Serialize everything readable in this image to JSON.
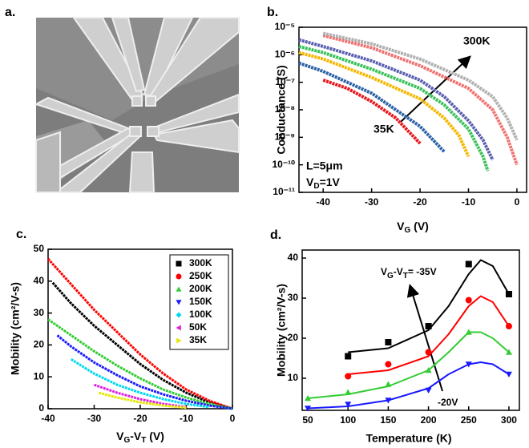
{
  "image_panel": {
    "label": "a."
  },
  "chart_data": [
    {
      "type": "line",
      "panel_label": "b.",
      "yscale": "log",
      "xlabel": [
        "V",
        "G",
        " (V)"
      ],
      "ylabel": "Conductance (S)",
      "annotations": [
        "300K",
        "35K",
        "L=5μm",
        "V",
        "D",
        "=1V"
      ],
      "xlim": [
        -45,
        2
      ],
      "xticks": [
        -40,
        -30,
        -20,
        -10,
        0
      ],
      "ylim": [
        1e-11,
        1e-05
      ],
      "yticks": [
        {
          "value": 1e-11,
          "label": "10⁻¹¹"
        },
        {
          "value": 1e-10,
          "label": "10⁻¹⁰"
        },
        {
          "value": 1e-09,
          "label": "10⁻⁹"
        },
        {
          "value": 1e-08,
          "label": "10⁻⁸"
        },
        {
          "value": 1e-07,
          "label": "10⁻⁷"
        },
        {
          "value": 1e-06,
          "label": "10⁻⁶"
        },
        {
          "value": 1e-05,
          "label": "10⁻⁵"
        }
      ],
      "series": [
        {
          "color": "#e8141b",
          "x": [
            -40,
            -35,
            -30,
            -25,
            -20
          ],
          "values": [
            1.2e-07,
            6e-08,
            2e-08,
            5e-09,
            6e-10
          ]
        },
        {
          "color": "#2b63a8",
          "x": [
            -45,
            -40,
            -35,
            -30,
            -25,
            -20,
            -15
          ],
          "values": [
            5e-07,
            2.5e-07,
            1e-07,
            4e-08,
            1e-08,
            2.5e-09,
            3e-10
          ]
        },
        {
          "color": "#f4b800",
          "x": [
            -45,
            -40,
            -30,
            -20,
            -15,
            -12,
            -10
          ],
          "values": [
            1.2e-06,
            7e-07,
            1.5e-07,
            2.5e-08,
            5e-09,
            1.2e-09,
            2e-10
          ]
        },
        {
          "color": "#39c25a",
          "x": [
            -45,
            -40,
            -30,
            -20,
            -15,
            -10,
            -7,
            -6
          ],
          "values": [
            2e-06,
            1.2e-06,
            3e-07,
            6e-08,
            1.5e-08,
            2e-09,
            2e-10,
            6e-11
          ]
        },
        {
          "color": "#5a5fb0",
          "x": [
            -45,
            -40,
            -30,
            -20,
            -15,
            -10,
            -7,
            -5
          ],
          "values": [
            3.5e-06,
            2e-06,
            6e-07,
            1.2e-07,
            3e-08,
            4e-09,
            8e-10,
            1.5e-10
          ]
        },
        {
          "color": "#f07070",
          "x": [
            -40,
            -30,
            -20,
            -10,
            -5,
            -2,
            0
          ],
          "values": [
            5e-06,
            1.8e-06,
            4e-07,
            6e-08,
            1e-08,
            1e-09,
            1e-10
          ]
        },
        {
          "color": "#b0b0b0",
          "x": [
            -40,
            -30,
            -20,
            -10,
            -5,
            -2,
            0
          ],
          "values": [
            6e-06,
            2.5e-06,
            7e-07,
            1.2e-07,
            3e-08,
            5e-09,
            8e-10
          ]
        }
      ]
    },
    {
      "type": "line",
      "panel_label": "c.",
      "xlabel": [
        "V",
        "G",
        "-V",
        "T",
        " (V)"
      ],
      "ylabel": "Mobility (cm²/V-s)",
      "xlim": [
        -40,
        0
      ],
      "xticks": [
        -40,
        -30,
        -20,
        -10,
        0
      ],
      "ylim": [
        0,
        50
      ],
      "yticks": [
        0,
        10,
        20,
        30,
        40,
        50
      ],
      "legend": "upper right",
      "series": [
        {
          "name": "300K",
          "color": "#000000",
          "marker": "square",
          "x": [
            -39,
            -35,
            -30,
            -25,
            -20,
            -15,
            -10,
            -5,
            0
          ],
          "values": [
            39.5,
            33,
            26,
            20,
            14,
            9,
            5,
            2,
            0
          ]
        },
        {
          "name": "250K",
          "color": "#ff0000",
          "marker": "circle",
          "x": [
            -40,
            -35,
            -30,
            -25,
            -20,
            -15,
            -10,
            -5,
            0
          ],
          "values": [
            47,
            39,
            31,
            24,
            17,
            11,
            6,
            2.5,
            0
          ]
        },
        {
          "name": "200K",
          "color": "#33cc33",
          "marker": "up",
          "x": [
            -40,
            -35,
            -30,
            -25,
            -20,
            -15,
            -10,
            -5,
            0
          ],
          "values": [
            28,
            23,
            18,
            13.5,
            9.5,
            6,
            3.5,
            1.5,
            0
          ]
        },
        {
          "name": "150K",
          "color": "#1a1aff",
          "marker": "down",
          "x": [
            -38,
            -35,
            -30,
            -25,
            -20,
            -15,
            -10,
            -5,
            0
          ],
          "values": [
            23,
            19.5,
            14.5,
            10.5,
            7,
            4.5,
            2.5,
            1,
            0
          ]
        },
        {
          "name": "100K",
          "color": "#00d8f0",
          "marker": "diamond",
          "x": [
            -35,
            -30,
            -25,
            -20,
            -15,
            -10,
            -5
          ],
          "values": [
            15.5,
            11,
            7.5,
            5,
            3,
            1.5,
            0.5
          ]
        },
        {
          "name": "50K",
          "color": "#e020e0",
          "marker": "left",
          "x": [
            -30,
            -25,
            -20,
            -15,
            -10
          ],
          "values": [
            7.5,
            5,
            3,
            1.5,
            0.5
          ]
        },
        {
          "name": "35K",
          "color": "#e6e600",
          "marker": "right",
          "x": [
            -29,
            -25,
            -20,
            -15,
            -10
          ],
          "values": [
            5,
            3.5,
            2,
            1,
            0.3
          ]
        }
      ]
    },
    {
      "type": "scatter",
      "panel_label": "d.",
      "xlabel": "Temperature (K)",
      "ylabel": "Mobility (cm²/V-s)",
      "annotations": [
        "V",
        "G",
        "-V",
        "T",
        "= -35V",
        "-20V"
      ],
      "xlim": [
        43,
        313
      ],
      "xticks": [
        50,
        100,
        150,
        200,
        250,
        300
      ],
      "ylim": [
        2,
        42
      ],
      "yticks": [
        10,
        20,
        30,
        40
      ],
      "x": [
        50,
        100,
        150,
        200,
        250,
        300
      ],
      "series": [
        {
          "color": "#000000",
          "marker": "square",
          "values": [
            null,
            15.5,
            19,
            23,
            38.5,
            31
          ],
          "fit_x": [
            100,
            150,
            200,
            225,
            250,
            265,
            280,
            300
          ],
          "fit_values": [
            16.5,
            17.5,
            22,
            28,
            36,
            39.5,
            38,
            31
          ]
        },
        {
          "color": "#ff0000",
          "marker": "circle",
          "values": [
            null,
            10.5,
            13.5,
            16.5,
            29.5,
            23
          ],
          "fit_x": [
            100,
            150,
            200,
            225,
            250,
            265,
            280,
            300
          ],
          "fit_values": [
            11,
            12,
            15.5,
            21,
            28,
            30.5,
            29,
            23
          ]
        },
        {
          "color": "#33cc33",
          "marker": "up",
          "values": [
            5,
            6.5,
            8.5,
            12,
            21.5,
            16.5
          ],
          "fit_x": [
            50,
            100,
            150,
            200,
            225,
            250,
            265,
            280,
            300
          ],
          "fit_values": [
            5,
            6,
            8,
            12,
            16.5,
            21.5,
            21.5,
            20,
            16.5
          ]
        },
        {
          "color": "#1a1aff",
          "marker": "down",
          "values": [
            2.5,
            3.5,
            4.5,
            7,
            13.5,
            11
          ],
          "fit_x": [
            50,
            100,
            150,
            200,
            225,
            250,
            265,
            280,
            300
          ],
          "fit_values": [
            2.5,
            3,
            4.5,
            7.5,
            11,
            13.5,
            14,
            13.5,
            11
          ]
        }
      ]
    }
  ]
}
